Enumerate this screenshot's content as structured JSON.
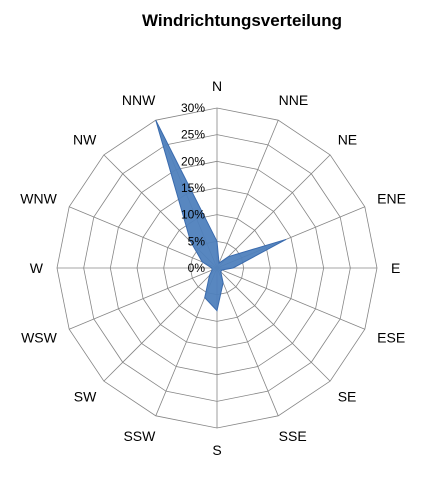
{
  "chart_data": {
    "type": "radar",
    "title": "Windrichtungsverteilung",
    "categories": [
      "N",
      "NNE",
      "NE",
      "ENE",
      "E",
      "ESE",
      "SE",
      "SSE",
      "S",
      "SSW",
      "SW",
      "WSW",
      "W",
      "WNW",
      "NW",
      "NNW"
    ],
    "series": [
      {
        "values": [
          5,
          1,
          3,
          14,
          3,
          1,
          1,
          3,
          8,
          6,
          2,
          1,
          1,
          3,
          7,
          30
        ]
      }
    ],
    "r_ticks": [
      "0%",
      "5%",
      "10%",
      "15%",
      "20%",
      "25%",
      "30%"
    ],
    "r_tick_values": [
      0,
      5,
      10,
      15,
      20,
      25,
      30
    ],
    "rlim": [
      0,
      30
    ],
    "grid": true,
    "legend": "none",
    "series_color": "#4F81BD",
    "series_stroke": "#3A6BAE",
    "grid_color": "#868686"
  }
}
